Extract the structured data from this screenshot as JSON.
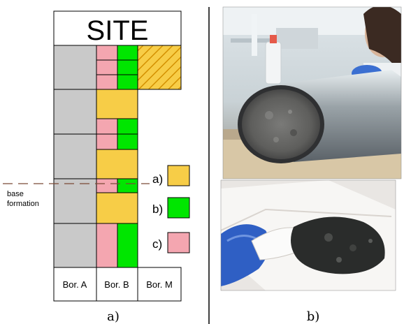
{
  "diagram": {
    "header": "SITE",
    "columns": [
      "Bor. A",
      "Bor. B",
      "Bor. M"
    ],
    "baseline_label_lines": [
      "base",
      "formation"
    ],
    "legend": [
      {
        "key": "a)",
        "color": "#f7cd47"
      },
      {
        "key": "b)",
        "color": "#00e600"
      },
      {
        "key": "c)",
        "color": "#f4a6b0"
      }
    ],
    "colors": {
      "gray": "#c9c9c9",
      "yellow": "#f7cd47",
      "green": "#00e600",
      "pink": "#f4a6b0",
      "hatch": "#e0a000",
      "dashed_line": "#7b4a36"
    }
  },
  "captions": {
    "left": "a)",
    "right": "b)"
  },
  "photos": [
    {
      "name": "soil-core-photo"
    },
    {
      "name": "soil-sample-on-spatula-photo"
    }
  ]
}
